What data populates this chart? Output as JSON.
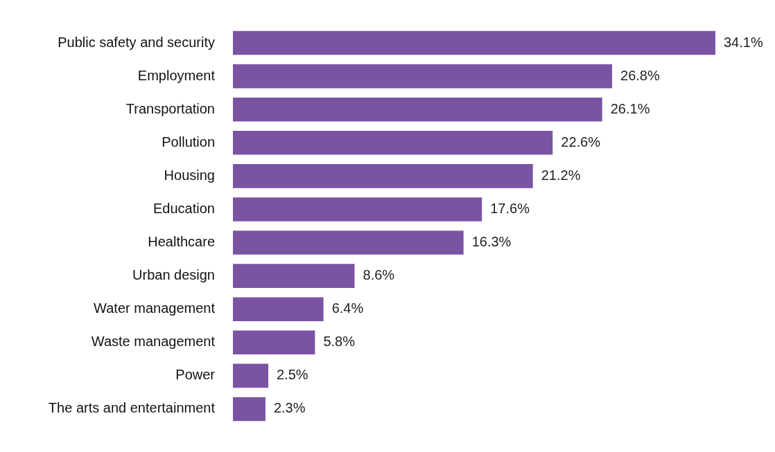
{
  "chart_data": {
    "type": "bar",
    "orientation": "horizontal",
    "categories": [
      "Public safety and security",
      "Employment",
      "Transportation",
      "Pollution",
      "Housing",
      "Education",
      "Healthcare",
      "Urban design",
      "Water management",
      "Waste management",
      "Power",
      "The arts and entertainment"
    ],
    "values": [
      34.1,
      26.8,
      26.1,
      22.6,
      21.2,
      17.6,
      16.3,
      8.6,
      6.4,
      5.8,
      2.5,
      2.3
    ],
    "value_labels": [
      "34.1%",
      "26.8%",
      "26.1%",
      "22.6%",
      "21.2%",
      "17.6%",
      "16.3%",
      "8.6%",
      "6.4%",
      "5.8%",
      "2.5%",
      "2.3%"
    ],
    "color": "#7a54a2",
    "xlim": [
      0,
      34.1
    ],
    "tick_labels": "y",
    "grid": false,
    "legend": false
  }
}
